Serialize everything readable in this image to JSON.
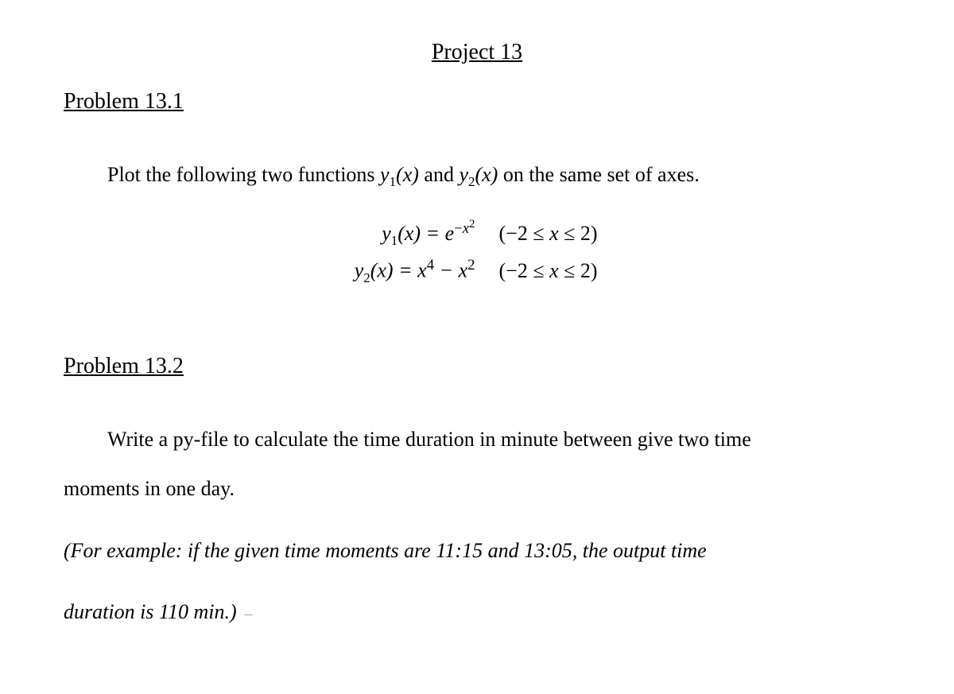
{
  "document": {
    "title": "Project 13",
    "background_color": "#ffffff",
    "text_color": "#000000",
    "font_family": "Times New Roman",
    "body_fontsize": 26,
    "title_fontsize": 28
  },
  "problem1": {
    "heading": "Problem 13.1",
    "intro_prefix": "Plot the following two functions ",
    "y1_label": "y",
    "y1_sub": "1",
    "y1_arg": "(x)",
    "conj": " and  ",
    "y2_label": "y",
    "y2_sub": "2",
    "y2_arg": "(x)",
    "intro_suffix": " on the same set of axes.",
    "equations": {
      "line1": {
        "func": "y",
        "func_sub": "1",
        "arg": "(x) = e",
        "exp_prefix": "−",
        "exp_var": "x",
        "exp_pow": "2",
        "interval": "(−2 ≤ x ≤ 2)"
      },
      "line2": {
        "func": "y",
        "func_sub": "2",
        "lhs_rest": "(x) = x",
        "pow1": "4",
        "mid": " − x",
        "pow2": "2",
        "interval": "(−2 ≤ x ≤ 2)"
      }
    }
  },
  "problem2": {
    "heading": "Problem 13.2",
    "body_line1": "Write a py-file to calculate the time duration in minute between give two time",
    "body_line2": "moments in one day.",
    "example_line1": "(For example: if the given time moments are 11:15 and 13:05, the output time",
    "example_line2_prefix": "duration is 110 min.)",
    "cursor": "–"
  }
}
